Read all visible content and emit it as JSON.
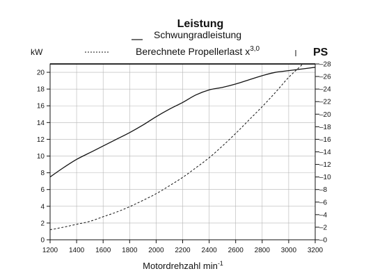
{
  "chart_data": {
    "type": "line",
    "title": "Leistung",
    "xlabel": "Motordrehzahl min",
    "xlabel_sup": "-1",
    "ylabel_left": "kW",
    "ylabel_right": "PS",
    "xlim": [
      1200,
      3200
    ],
    "ylim": [
      0,
      21
    ],
    "ylim_right": [
      0,
      28
    ],
    "x_ticks": [
      1200,
      1400,
      1600,
      1800,
      2000,
      2200,
      2400,
      2600,
      2800,
      3000,
      3200
    ],
    "y_ticks": [
      0,
      2,
      4,
      6,
      8,
      10,
      12,
      14,
      16,
      18,
      20
    ],
    "y_ticks_right": [
      0,
      2,
      4,
      6,
      8,
      10,
      12,
      14,
      16,
      18,
      20,
      22,
      24,
      26,
      28
    ],
    "grid": true,
    "legend": "top-center",
    "series": [
      {
        "name": "Schwungradleistung",
        "style": "solid",
        "x": [
          1200,
          1300,
          1400,
          1500,
          1600,
          1700,
          1800,
          1900,
          2000,
          2100,
          2200,
          2300,
          2400,
          2500,
          2600,
          2700,
          2800,
          2900,
          3000,
          3100,
          3200
        ],
        "y": [
          7.5,
          8.6,
          9.6,
          10.4,
          11.2,
          12.0,
          12.8,
          13.7,
          14.7,
          15.6,
          16.4,
          17.3,
          17.9,
          18.2,
          18.6,
          19.1,
          19.6,
          20.0,
          20.2,
          20.4,
          20.6
        ]
      },
      {
        "name": "Berechnete Propellerlast x",
        "name_sup": "3,0",
        "style": "dashed",
        "x": [
          1200,
          1300,
          1400,
          1500,
          1600,
          1700,
          1800,
          1900,
          2000,
          2100,
          2200,
          2300,
          2400,
          2500,
          2600,
          2700,
          2800,
          2900,
          3000,
          3100,
          3200
        ],
        "y": [
          1.2,
          1.5,
          1.85,
          2.2,
          2.75,
          3.3,
          3.95,
          4.7,
          5.5,
          6.45,
          7.45,
          8.6,
          9.8,
          11.2,
          12.7,
          14.3,
          15.9,
          17.6,
          19.4,
          20.9,
          22.5
        ]
      }
    ]
  }
}
